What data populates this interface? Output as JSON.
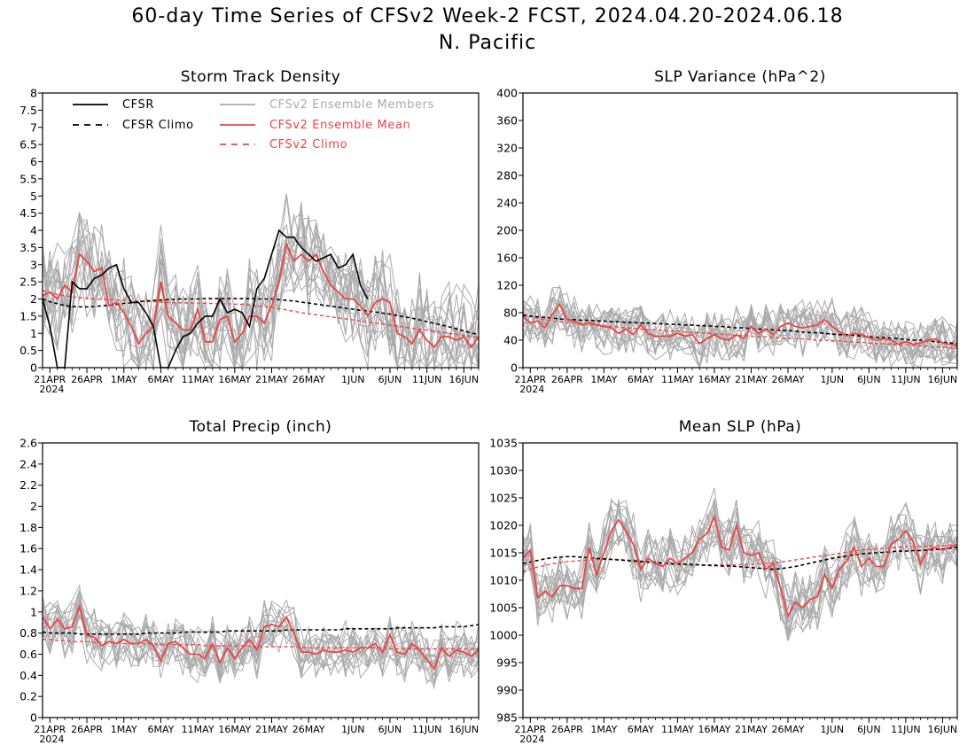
{
  "title": "60-day Time Series of CFSv2 Week-2 FCST, 2024.04.20-2024.06.18",
  "subtitle": "N. Pacific",
  "colors": {
    "cfsr": "#000000",
    "cfsr_climo": "#000000",
    "members": "#aaaaaa",
    "ens_mean": "#ee4444",
    "cfs_climo": "#ee4444"
  },
  "x_ticks": [
    "21APR",
    "26APR",
    "1MAY",
    "6MAY",
    "11MAY",
    "16MAY",
    "21MAY",
    "26MAY",
    "1JUN",
    "6JUN",
    "11JUN",
    "16JUN"
  ],
  "x_year": "2024",
  "legend": {
    "cfsr": "CFSR",
    "cfsr_climo": "CFSR Climo",
    "members": "CFSv2 Ensemble Members",
    "ens_mean": "CFSv2 Ensemble Mean",
    "cfs_climo": "CFSv2 Climo"
  },
  "chart_data": [
    {
      "type": "line",
      "title": "Storm Track Density",
      "x_start": "2024-04-20",
      "x_end": "2024-06-18",
      "ylim": [
        0,
        8
      ],
      "y_ticks": [
        "0",
        "0.5",
        "1",
        "1.5",
        "2",
        "2.5",
        "3",
        "3.5",
        "4",
        "4.5",
        "5",
        "5.5",
        "6",
        "6.5",
        "7",
        "7.5",
        "8"
      ],
      "legend_placement": "top",
      "series": [
        {
          "name": "CFSR",
          "values": [
            2.0,
            1.2,
            0.0,
            0.0,
            2.5,
            2.3,
            2.3,
            2.6,
            2.7,
            2.9,
            3.0,
            2.3,
            1.9,
            1.9,
            1.6,
            1.2,
            0.0,
            0.0,
            0.5,
            0.9,
            1.0,
            1.3,
            1.5,
            1.5,
            2.0,
            1.6,
            1.7,
            1.6,
            1.2,
            2.3,
            2.6,
            3.3,
            4.0,
            3.8,
            3.8,
            3.5,
            3.3,
            3.1,
            3.2,
            3.3,
            2.9,
            3.0,
            3.3,
            2.4,
            2.0
          ]
        },
        {
          "name": "CFSR Climo",
          "values": [
            2.0,
            1.92,
            1.86,
            1.81,
            1.78,
            1.77,
            1.77,
            1.78,
            1.8,
            1.82,
            1.84,
            1.87,
            1.89,
            1.92,
            1.94,
            1.96,
            1.97,
            1.98,
            1.99,
            2.0,
            2.0,
            2.0,
            2.01,
            2.01,
            2.01,
            2.01,
            2.01,
            2.01,
            2.01,
            2.0,
            2.0,
            2.0,
            1.98,
            1.96,
            1.94,
            1.91,
            1.88,
            1.85,
            1.82,
            1.79,
            1.76,
            1.73,
            1.7,
            1.67,
            1.65,
            1.62,
            1.59,
            1.56,
            1.52,
            1.48,
            1.44,
            1.39,
            1.34,
            1.29,
            1.24,
            1.19,
            1.13,
            1.07,
            1.01,
            0.96
          ]
        },
        {
          "name": "CFSv2 Ensemble Mean",
          "values": [
            2.1,
            2.2,
            2.0,
            2.4,
            2.2,
            3.3,
            3.1,
            2.8,
            2.9,
            1.8,
            1.9,
            1.6,
            1.2,
            0.7,
            1.0,
            1.2,
            2.5,
            1.5,
            1.3,
            1.1,
            1.1,
            1.7,
            0.75,
            0.75,
            1.4,
            1.5,
            0.75,
            1.0,
            1.5,
            1.5,
            1.3,
            1.8,
            2.5,
            3.6,
            3.1,
            3.3,
            3.1,
            3.3,
            2.8,
            2.4,
            2.2,
            2.0,
            2.0,
            1.8,
            1.5,
            1.9,
            2.0,
            1.9,
            1.0,
            0.9,
            0.7,
            1.1,
            0.8,
            0.6,
            0.9,
            0.9,
            0.8,
            0.9,
            0.6,
            0.9
          ]
        },
        {
          "name": "CFSv2 Climo",
          "values": [
            2.25,
            2.18,
            2.13,
            2.09,
            2.06,
            2.04,
            2.02,
            2.0,
            1.99,
            1.98,
            1.97,
            1.96,
            1.95,
            1.94,
            1.93,
            1.92,
            1.91,
            1.9,
            1.89,
            1.89,
            1.88,
            1.88,
            1.87,
            1.87,
            1.86,
            1.86,
            1.85,
            1.84,
            1.82,
            1.8,
            1.78,
            1.75,
            1.72,
            1.68,
            1.64,
            1.6,
            1.57,
            1.54,
            1.51,
            1.48,
            1.45,
            1.42,
            1.39,
            1.36,
            1.33,
            1.3,
            1.27,
            1.24,
            1.21,
            1.18,
            1.15,
            1.12,
            1.09,
            1.06,
            1.03,
            1.0,
            0.97,
            0.94,
            0.91,
            0.88
          ]
        }
      ]
    },
    {
      "type": "line",
      "title": "SLP Variance (hPa^2)",
      "x_start": "2024-04-20",
      "x_end": "2024-06-18",
      "ylim": [
        0,
        400
      ],
      "y_ticks": [
        "0",
        "40",
        "80",
        "120",
        "160",
        "200",
        "240",
        "280",
        "320",
        "360",
        "400"
      ],
      "series": [
        {
          "name": "CFSR Climo",
          "values": [
            76,
            75,
            74,
            73,
            72,
            71,
            70,
            70,
            69,
            69,
            68,
            68,
            67,
            67,
            66,
            66,
            65,
            65,
            64,
            64,
            63,
            63,
            62,
            62,
            61,
            61,
            60,
            60,
            59,
            58,
            58,
            57,
            56,
            56,
            55,
            54,
            54,
            53,
            52,
            51,
            51,
            50,
            49,
            48,
            48,
            47,
            46,
            45,
            44,
            44,
            43,
            42,
            41,
            40,
            40,
            39,
            38,
            37,
            36,
            35
          ]
        },
        {
          "name": "CFSv2 Ensemble Mean",
          "values": [
            74,
            65,
            68,
            58,
            78,
            92,
            70,
            68,
            62,
            66,
            62,
            60,
            58,
            50,
            56,
            48,
            62,
            50,
            45,
            46,
            46,
            50,
            46,
            48,
            35,
            42,
            48,
            42,
            40,
            48,
            42,
            60,
            50,
            56,
            48,
            60,
            65,
            60,
            58,
            60,
            62,
            70,
            60,
            52,
            46,
            50,
            48,
            44,
            40,
            42,
            40,
            34,
            38,
            34,
            36,
            40,
            42,
            36,
            34,
            32
          ]
        },
        {
          "name": "CFSv2 Climo",
          "values": [
            78,
            75,
            72,
            70,
            68,
            67,
            66,
            65,
            64,
            63,
            62,
            61,
            60,
            59,
            58,
            57,
            56,
            55,
            55,
            54,
            53,
            53,
            52,
            51,
            51,
            50,
            49,
            49,
            48,
            47,
            47,
            46,
            45,
            45,
            44,
            43,
            43,
            42,
            42,
            41,
            40,
            40,
            39,
            39,
            38,
            37,
            37,
            36,
            35,
            35,
            34,
            33,
            33,
            32,
            32,
            31,
            30,
            30,
            29,
            28
          ]
        }
      ]
    },
    {
      "type": "line",
      "title": "Total Precip (inch)",
      "x_start": "2024-04-20",
      "x_end": "2024-06-18",
      "ylim": [
        0,
        2.6
      ],
      "y_ticks": [
        "0",
        "0.2",
        "0.4",
        "0.6",
        "0.8",
        "1",
        "1.2",
        "1.4",
        "1.6",
        "1.8",
        "2",
        "2.2",
        "2.4",
        "2.6"
      ],
      "series": [
        {
          "name": "CFSR Climo",
          "values": [
            0.81,
            0.8,
            0.8,
            0.8,
            0.8,
            0.79,
            0.79,
            0.79,
            0.79,
            0.79,
            0.79,
            0.79,
            0.79,
            0.79,
            0.8,
            0.8,
            0.8,
            0.8,
            0.8,
            0.81,
            0.81,
            0.81,
            0.81,
            0.81,
            0.81,
            0.82,
            0.82,
            0.82,
            0.82,
            0.82,
            0.82,
            0.82,
            0.82,
            0.83,
            0.83,
            0.83,
            0.83,
            0.83,
            0.83,
            0.83,
            0.83,
            0.84,
            0.84,
            0.84,
            0.84,
            0.84,
            0.84,
            0.84,
            0.85,
            0.85,
            0.85,
            0.85,
            0.85,
            0.85,
            0.86,
            0.86,
            0.86,
            0.86,
            0.87,
            0.88
          ]
        },
        {
          "name": "CFSv2 Ensemble Mean",
          "values": [
            0.95,
            0.84,
            0.93,
            0.84,
            0.86,
            1.05,
            0.78,
            0.76,
            0.68,
            0.72,
            0.7,
            0.74,
            0.7,
            0.7,
            0.74,
            0.68,
            0.54,
            0.7,
            0.72,
            0.66,
            0.6,
            0.6,
            0.56,
            0.7,
            0.52,
            0.66,
            0.56,
            0.66,
            0.74,
            0.64,
            0.86,
            0.88,
            0.86,
            0.95,
            0.8,
            0.62,
            0.62,
            0.6,
            0.64,
            0.62,
            0.62,
            0.64,
            0.62,
            0.66,
            0.66,
            0.7,
            0.62,
            0.78,
            0.62,
            0.6,
            0.7,
            0.64,
            0.55,
            0.46,
            0.66,
            0.58,
            0.64,
            0.62,
            0.58,
            0.64
          ]
        },
        {
          "name": "CFSv2 Climo",
          "values": [
            0.74,
            0.74,
            0.73,
            0.73,
            0.72,
            0.72,
            0.72,
            0.71,
            0.71,
            0.71,
            0.71,
            0.7,
            0.7,
            0.7,
            0.7,
            0.7,
            0.69,
            0.69,
            0.69,
            0.69,
            0.69,
            0.69,
            0.68,
            0.68,
            0.68,
            0.68,
            0.68,
            0.68,
            0.68,
            0.67,
            0.67,
            0.67,
            0.67,
            0.67,
            0.67,
            0.67,
            0.66,
            0.66,
            0.66,
            0.66,
            0.66,
            0.66,
            0.66,
            0.66,
            0.66,
            0.66,
            0.66,
            0.65,
            0.65,
            0.65,
            0.65,
            0.65,
            0.65,
            0.65,
            0.65,
            0.65,
            0.65,
            0.65,
            0.65,
            0.65
          ]
        }
      ]
    },
    {
      "type": "line",
      "title": "Mean SLP (hPa)",
      "x_start": "2024-04-20",
      "x_end": "2024-06-18",
      "ylim": [
        985,
        1035
      ],
      "y_ticks": [
        "985",
        "990",
        "995",
        "1000",
        "1005",
        "1010",
        "1015",
        "1020",
        "1025",
        "1030",
        "1035"
      ],
      "series": [
        {
          "name": "CFSR Climo",
          "values": [
            1013.0,
            1013.3,
            1013.6,
            1013.9,
            1014.1,
            1014.2,
            1014.3,
            1014.3,
            1014.2,
            1014.1,
            1014.0,
            1013.9,
            1013.8,
            1013.7,
            1013.6,
            1013.5,
            1013.4,
            1013.3,
            1013.2,
            1013.1,
            1013.0,
            1012.9,
            1012.9,
            1012.8,
            1012.8,
            1012.7,
            1012.7,
            1012.6,
            1012.6,
            1012.5,
            1012.4,
            1012.3,
            1012.2,
            1012.1,
            1012.0,
            1012.1,
            1012.3,
            1012.5,
            1012.8,
            1013.1,
            1013.4,
            1013.7,
            1014.0,
            1014.2,
            1014.4,
            1014.6,
            1014.8,
            1014.9,
            1015.0,
            1015.1,
            1015.2,
            1015.3,
            1015.3,
            1015.4,
            1015.4,
            1015.5,
            1015.6,
            1015.7,
            1015.8,
            1016.0
          ]
        },
        {
          "name": "CFSv2 Ensemble Mean",
          "values": [
            1014.0,
            1015.5,
            1006.8,
            1008.0,
            1007.0,
            1009.0,
            1009.0,
            1008.5,
            1008.5,
            1016.0,
            1011.0,
            1015.0,
            1019.0,
            1021.0,
            1019.0,
            1016.5,
            1012.0,
            1014.0,
            1013.0,
            1012.5,
            1014.0,
            1013.0,
            1014.0,
            1015.0,
            1017.5,
            1018.5,
            1021.5,
            1016.0,
            1015.5,
            1020.0,
            1015.0,
            1014.5,
            1015.0,
            1012.0,
            1013.0,
            1008.5,
            1003.5,
            1006.0,
            1005.0,
            1006.5,
            1007.0,
            1011.0,
            1008.5,
            1012.0,
            1013.5,
            1016.0,
            1012.5,
            1014.0,
            1012.5,
            1012.5,
            1016.5,
            1017.5,
            1019.0,
            1017.0,
            1013.0,
            1015.5,
            1016.0,
            1015.5,
            1016.0,
            1016.5
          ]
        },
        {
          "name": "CFSv2 Climo",
          "values": [
            1011.5,
            1012.0,
            1012.4,
            1012.7,
            1013.0,
            1013.2,
            1013.4,
            1013.5,
            1013.6,
            1013.7,
            1013.8,
            1013.8,
            1013.8,
            1013.8,
            1013.7,
            1013.6,
            1013.5,
            1013.4,
            1013.3,
            1013.2,
            1013.1,
            1013.0,
            1012.9,
            1012.9,
            1012.8,
            1012.8,
            1012.8,
            1012.8,
            1012.8,
            1012.8,
            1012.9,
            1012.9,
            1013.0,
            1013.1,
            1013.2,
            1013.3,
            1013.5,
            1013.7,
            1013.9,
            1014.1,
            1014.3,
            1014.5,
            1014.7,
            1014.9,
            1015.1,
            1015.3,
            1015.5,
            1015.6,
            1015.7,
            1015.8,
            1015.9,
            1016.0,
            1016.1,
            1016.1,
            1016.2,
            1016.2,
            1016.3,
            1016.3,
            1016.4,
            1016.4
          ]
        }
      ]
    }
  ]
}
